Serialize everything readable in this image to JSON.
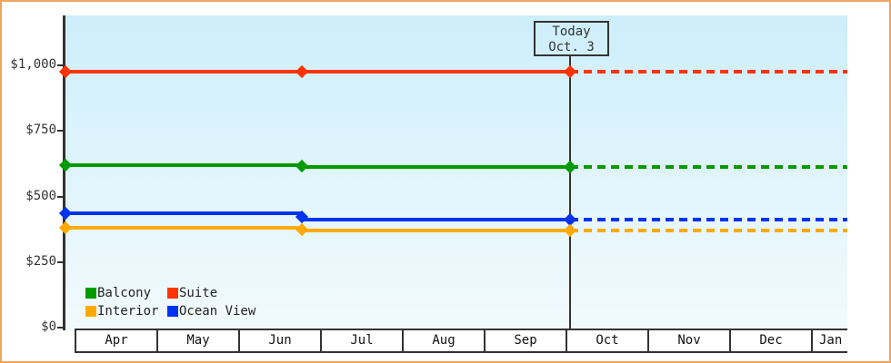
{
  "today_marker": {
    "title": "Today",
    "date": "Oct. 3"
  },
  "colors": {
    "frame_border": "#eda55f",
    "axis": "#333333",
    "plot_gradient_top": "#cdeefb",
    "plot_gradient_bottom": "#f2fafd"
  },
  "legend": {
    "position": "bottom-left",
    "items": [
      "Balcony",
      "Suite",
      "Interior",
      "Ocean View"
    ]
  },
  "chart_data": {
    "type": "line",
    "title": "",
    "categories": [
      "Apr",
      "May",
      "Jun",
      "Jul",
      "Aug",
      "Sep",
      "Oct",
      "Nov",
      "Dec",
      "Jan"
    ],
    "y_ticks": [
      {
        "label": "$0",
        "value": 0
      },
      {
        "label": "$250",
        "value": 250
      },
      {
        "label": "$500",
        "value": 500
      },
      {
        "label": "$750",
        "value": 750
      },
      {
        "label": "$1,000",
        "value": 1000
      }
    ],
    "ylim": [
      0,
      1190
    ],
    "grid": false,
    "x_points": [
      "Apr (start)",
      "late Jun",
      "Oct 3 (today)"
    ],
    "series": [
      {
        "name": "Suite",
        "color": "#ff3300",
        "values": [
          975,
          975,
          975
        ],
        "projected_value": 975
      },
      {
        "name": "Balcony",
        "color": "#009b00",
        "values": [
          620,
          612,
          612
        ],
        "projected_value": 612
      },
      {
        "name": "Ocean View",
        "color": "#0033ee",
        "values": [
          435,
          412,
          412
        ],
        "projected_value": 412
      },
      {
        "name": "Interior",
        "color": "#ffaa00",
        "values": [
          380,
          370,
          370
        ],
        "projected_value": 370
      }
    ],
    "projection": {
      "style": "dashed",
      "from": "Oct 3 (today)",
      "to": "Jan (axis end)"
    },
    "annotations": [
      {
        "text": "Today Oct. 3",
        "x": "Oct 3"
      }
    ],
    "legend_position": "bottom-left"
  }
}
